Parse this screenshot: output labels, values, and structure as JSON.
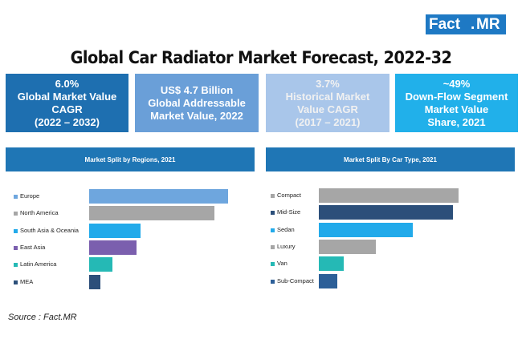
{
  "brand": {
    "part1": "Fact",
    "dot": ".",
    "part2": "MR"
  },
  "title": "Global Car Radiator Market Forecast, 2022-32",
  "kpis": [
    {
      "line1": "6.0%",
      "line2": "Global Market Value",
      "line3": "CAGR",
      "line4": "(2022 – 2032)",
      "color": "#1e6fb0"
    },
    {
      "line1": "US$ 4.7 Billion",
      "line2": "Global Addressable",
      "line3": "Market Value, 2022",
      "line4": "",
      "color": "#6a9fd8"
    },
    {
      "line1": "3.7%",
      "line2": "Historical Market",
      "line3": "Value CAGR",
      "line4": "(2017 – 2021)",
      "color": "#a9c6ea"
    },
    {
      "line1": "~49%",
      "line2": "Down-Flow Segment",
      "line3": "Market Value",
      "line4": "Share, 2021",
      "color": "#21b0ea"
    }
  ],
  "chart_data": [
    {
      "type": "bar",
      "title": "Market Split by Regions, 2021",
      "orientation": "horizontal",
      "categories": [
        "Europe",
        "North America",
        "South Asia & Oceania",
        "East Asia",
        "Latin America",
        "MEA"
      ],
      "values": [
        100,
        90,
        37,
        34,
        17,
        8
      ],
      "colors": [
        "#6ea6de",
        "#a6a6a6",
        "#22aaea",
        "#7b5fae",
        "#25b9b5",
        "#2c4f7a"
      ],
      "grid": false
    },
    {
      "type": "bar",
      "title": "Market Split By Car Type, 2021",
      "orientation": "horizontal",
      "categories": [
        "Compact",
        "Mid-Size",
        "Sedan",
        "Luxury",
        "Van",
        "Sub-Compact"
      ],
      "values": [
        100,
        96,
        67,
        41,
        18,
        13
      ],
      "colors": [
        "#a6a6a6",
        "#2c4f7a",
        "#22aaea",
        "#a6a6a6",
        "#25b9b5",
        "#2c5f98"
      ],
      "grid": false
    }
  ],
  "source": "Source : Fact.MR"
}
